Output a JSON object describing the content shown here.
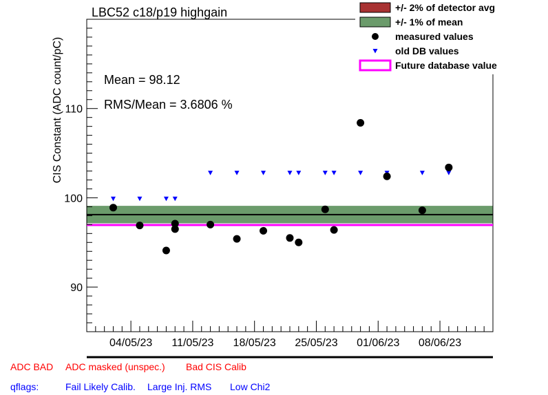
{
  "chart_data": {
    "type": "scatter",
    "title": "LBC52 c18/p19 highgain",
    "ylabel": "CIS Constant (ADC count/pC)",
    "xlabel": "",
    "ylim": [
      85,
      120
    ],
    "x_date_range": [
      "2023-04-29",
      "2023-06-14"
    ],
    "y_ticks": [
      90,
      100,
      110
    ],
    "x_tick_labels": [
      {
        "date": "2023-05-04",
        "label": "04/05/23"
      },
      {
        "date": "2023-05-11",
        "label": "11/05/23"
      },
      {
        "date": "2023-05-18",
        "label": "18/05/23"
      },
      {
        "date": "2023-05-25",
        "label": "25/05/23"
      },
      {
        "date": "2023-06-01",
        "label": "01/06/23"
      },
      {
        "date": "2023-06-08",
        "label": "08/06/23"
      }
    ],
    "stats": {
      "mean_label": "Mean = 98.12",
      "rms_label": "RMS/Mean = 3.6806 %"
    },
    "mean_value": 98.12,
    "band_1pct": [
      97.14,
      99.1
    ],
    "future_db_value": 96.95,
    "series": [
      {
        "name": "measured values",
        "color": "#000000",
        "marker": "circle",
        "points": [
          {
            "x": "2023-05-02",
            "y": 98.9
          },
          {
            "x": "2023-05-05",
            "y": 96.9
          },
          {
            "x": "2023-05-08",
            "y": 94.1
          },
          {
            "x": "2023-05-09",
            "y": 97.1
          },
          {
            "x": "2023-05-09",
            "y": 96.5
          },
          {
            "x": "2023-05-13",
            "y": 97.0
          },
          {
            "x": "2023-05-16",
            "y": 95.4
          },
          {
            "x": "2023-05-19",
            "y": 96.3
          },
          {
            "x": "2023-05-22",
            "y": 95.5
          },
          {
            "x": "2023-05-23",
            "y": 95.0
          },
          {
            "x": "2023-05-26",
            "y": 98.7
          },
          {
            "x": "2023-05-27",
            "y": 96.4
          },
          {
            "x": "2023-05-30",
            "y": 108.4
          },
          {
            "x": "2023-06-02",
            "y": 102.4
          },
          {
            "x": "2023-06-06",
            "y": 98.6
          },
          {
            "x": "2023-06-09",
            "y": 103.4
          }
        ]
      },
      {
        "name": "old DB values",
        "color": "#0000ff",
        "marker": "triangle-down",
        "points": [
          {
            "x": "2023-05-02",
            "y": 99.9
          },
          {
            "x": "2023-05-05",
            "y": 99.9
          },
          {
            "x": "2023-05-08",
            "y": 99.9
          },
          {
            "x": "2023-05-09",
            "y": 99.9
          },
          {
            "x": "2023-05-13",
            "y": 102.8
          },
          {
            "x": "2023-05-16",
            "y": 102.8
          },
          {
            "x": "2023-05-19",
            "y": 102.8
          },
          {
            "x": "2023-05-22",
            "y": 102.8
          },
          {
            "x": "2023-05-23",
            "y": 102.8
          },
          {
            "x": "2023-05-26",
            "y": 102.8
          },
          {
            "x": "2023-05-27",
            "y": 102.8
          },
          {
            "x": "2023-05-30",
            "y": 102.8
          },
          {
            "x": "2023-06-02",
            "y": 102.8
          },
          {
            "x": "2023-06-06",
            "y": 102.8
          },
          {
            "x": "2023-06-09",
            "y": 102.8
          }
        ]
      }
    ],
    "legend": {
      "placement": "top-right",
      "entries": [
        {
          "label": "+/- 2% of detector avg",
          "kind": "box",
          "color": "#a83232"
        },
        {
          "label": "+/- 1% of mean",
          "kind": "box",
          "color": "#6b9b6b"
        },
        {
          "label": "measured values",
          "kind": "circle",
          "color": "#000000"
        },
        {
          "label": "old DB values",
          "kind": "triangle",
          "color": "#0000ff"
        },
        {
          "label": "Future database value",
          "kind": "line",
          "color": "#ff00ff"
        }
      ]
    },
    "colors": {
      "band": "#6b9b6b",
      "mean_line": "#000000",
      "future_line": "#ff00ff"
    }
  },
  "footer": {
    "adc_bad": "ADC BAD",
    "adc_masked": "ADC masked (unspec.)",
    "bad_cis": "Bad CIS Calib",
    "qflags": "qflags:",
    "fail_likely": "Fail Likely Calib.",
    "large_inj": "Large Inj. RMS",
    "low_chi2": "Low Chi2"
  }
}
